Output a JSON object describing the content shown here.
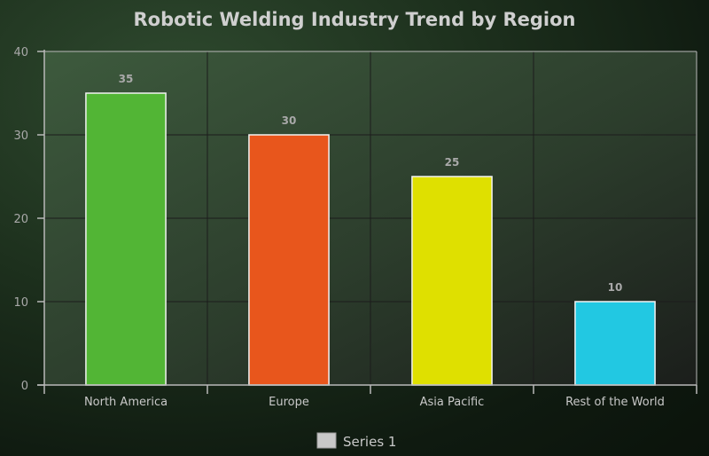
{
  "chart_data": {
    "type": "bar",
    "title": "Robotic Welding Industry Trend by Region",
    "xlabel": "",
    "ylabel": "",
    "categories": [
      "North America",
      "Europe",
      "Asia Pacific",
      "Rest of the World"
    ],
    "series": [
      {
        "name": "Series 1",
        "values": [
          35,
          30,
          25,
          10
        ]
      }
    ],
    "bar_colors": [
      "#52b535",
      "#e8561c",
      "#dfe000",
      "#22c8e2"
    ],
    "ylim": [
      0,
      40
    ],
    "yticks": [
      0,
      10,
      20,
      30,
      40
    ],
    "grid": true,
    "legend_position": "bottom-center",
    "data_labels": true
  },
  "colors": {
    "axis": "#b9b9b9",
    "grid": "#1c1c1c",
    "plot_background": "#2e432e",
    "bar_outline": "#f2f2f2",
    "legend_swatch": "#c8c8c8"
  }
}
